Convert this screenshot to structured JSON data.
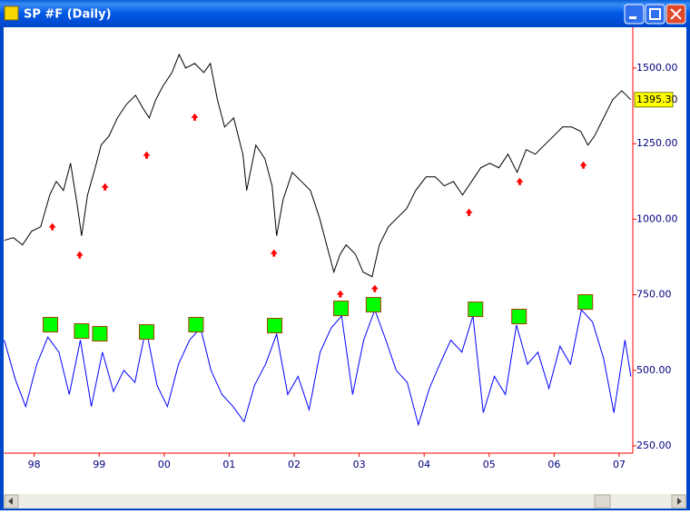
{
  "window": {
    "title": "SP #F (Daily)"
  },
  "chart_data": {
    "type": "line",
    "xlim": [
      1997.53,
      2007.21
    ],
    "ylim": [
      226,
      1641
    ],
    "xticks": [
      {
        "value": 1998,
        "label": "98"
      },
      {
        "value": 1999,
        "label": "99"
      },
      {
        "value": 2000,
        "label": "00"
      },
      {
        "value": 2001,
        "label": "01"
      },
      {
        "value": 2002,
        "label": "02"
      },
      {
        "value": 2003,
        "label": "03"
      },
      {
        "value": 2004,
        "label": "04"
      },
      {
        "value": 2005,
        "label": "05"
      },
      {
        "value": 2006,
        "label": "06"
      },
      {
        "value": 2007,
        "label": "07"
      }
    ],
    "yticks": [
      {
        "value": 250,
        "label": "250.00"
      },
      {
        "value": 500,
        "label": "500.00"
      },
      {
        "value": 750,
        "label": "750.00"
      },
      {
        "value": 1000,
        "label": "1000.00"
      },
      {
        "value": 1250,
        "label": "1250.00"
      },
      {
        "value": 1500,
        "label": "1500.00"
      }
    ],
    "last_price": {
      "value": 1395.3,
      "label": "1395.30"
    },
    "series": [
      {
        "color": "#000000",
        "x": [
          1997.54,
          1997.68,
          1997.82,
          1997.96,
          1998.1,
          1998.24,
          1998.34,
          1998.45,
          1998.56,
          1998.66,
          1998.73,
          1998.82,
          1998.94,
          1999.03,
          1999.15,
          1999.28,
          1999.42,
          1999.56,
          1999.68,
          1999.77,
          1999.87,
          1999.98,
          2000.12,
          2000.23,
          2000.33,
          2000.47,
          2000.61,
          2000.71,
          2000.82,
          2000.93,
          2001.07,
          2001.21,
          2001.27,
          2001.41,
          2001.55,
          2001.66,
          2001.73,
          2001.83,
          2001.97,
          2002.11,
          2002.25,
          2002.39,
          2002.5,
          2002.61,
          2002.71,
          2002.8,
          2002.94,
          2003.06,
          2003.2,
          2003.31,
          2003.45,
          2003.59,
          2003.73,
          2003.87,
          2004.03,
          2004.17,
          2004.31,
          2004.45,
          2004.59,
          2004.73,
          2004.87,
          2005.01,
          2005.15,
          2005.29,
          2005.43,
          2005.57,
          2005.71,
          2005.85,
          2005.99,
          2006.13,
          2006.27,
          2006.41,
          2006.52,
          2006.62,
          2006.76,
          2006.9,
          2007.04,
          2007.18
        ],
        "values": [
          930,
          939,
          915,
          960,
          975,
          1080,
          1125,
          1095,
          1185,
          1050,
          945,
          1080,
          1170,
          1245,
          1275,
          1335,
          1380,
          1410,
          1365,
          1335,
          1395,
          1440,
          1485,
          1545,
          1500,
          1515,
          1485,
          1515,
          1395,
          1305,
          1335,
          1215,
          1095,
          1245,
          1200,
          1110,
          945,
          1065,
          1155,
          1125,
          1095,
          1005,
          915,
          825,
          885,
          915,
          885,
          825,
          810,
          915,
          975,
          1005,
          1035,
          1095,
          1140,
          1140,
          1110,
          1125,
          1080,
          1125,
          1170,
          1185,
          1170,
          1215,
          1155,
          1230,
          1215,
          1245,
          1275,
          1305,
          1305,
          1290,
          1245,
          1275,
          1335,
          1395,
          1425,
          1395.3
        ]
      },
      {
        "color": "#0000ff",
        "x": [
          1997.54,
          1997.71,
          1997.87,
          1998.04,
          1998.21,
          1998.38,
          1998.54,
          1998.71,
          1998.88,
          1999.05,
          1999.22,
          1999.38,
          1999.55,
          1999.72,
          1999.89,
          2000.05,
          2000.22,
          2000.39,
          2000.56,
          2000.72,
          2000.89,
          2001.06,
          2001.23,
          2001.39,
          2001.56,
          2001.73,
          2001.9,
          2002.06,
          2002.23,
          2002.4,
          2002.57,
          2002.73,
          2002.9,
          2003.07,
          2003.24,
          2003.41,
          2003.57,
          2003.74,
          2003.91,
          2004.08,
          2004.24,
          2004.41,
          2004.58,
          2004.75,
          2004.91,
          2005.08,
          2005.25,
          2005.42,
          2005.59,
          2005.75,
          2005.92,
          2006.09,
          2006.25,
          2006.42,
          2006.59,
          2006.76,
          2006.92,
          2007.09,
          2007.18
        ],
        "values": [
          600,
          470,
          380,
          520,
          610,
          560,
          420,
          600,
          380,
          560,
          430,
          500,
          460,
          640,
          450,
          380,
          520,
          600,
          640,
          500,
          420,
          380,
          330,
          450,
          520,
          620,
          420,
          480,
          370,
          560,
          640,
          680,
          420,
          600,
          700,
          600,
          500,
          460,
          320,
          440,
          520,
          600,
          560,
          680,
          360,
          480,
          420,
          650,
          520,
          560,
          440,
          580,
          520,
          700,
          660,
          540,
          360,
          600,
          480
        ]
      }
    ],
    "markers": [
      {
        "shape": "arrow",
        "color": "#ff0000",
        "x": [
          1998.28,
          1998.7,
          1999.09,
          1999.73,
          2000.47,
          2001.69,
          2002.71,
          2003.24,
          2004.69,
          2005.47,
          2006.45
        ],
        "values": [
          975,
          882,
          1107,
          1212,
          1338,
          888,
          753,
          771,
          1023,
          1125,
          1179
        ]
      },
      {
        "shape": "square",
        "color": "#00ff00",
        "x": [
          1998.25,
          1998.73,
          1999.01,
          1999.73,
          2000.49,
          2001.7,
          2002.72,
          2003.22,
          2004.79,
          2005.46,
          2006.48
        ],
        "values": [
          651,
          630,
          621,
          627,
          651,
          648,
          705,
          717,
          702,
          678,
          726
        ]
      }
    ]
  }
}
